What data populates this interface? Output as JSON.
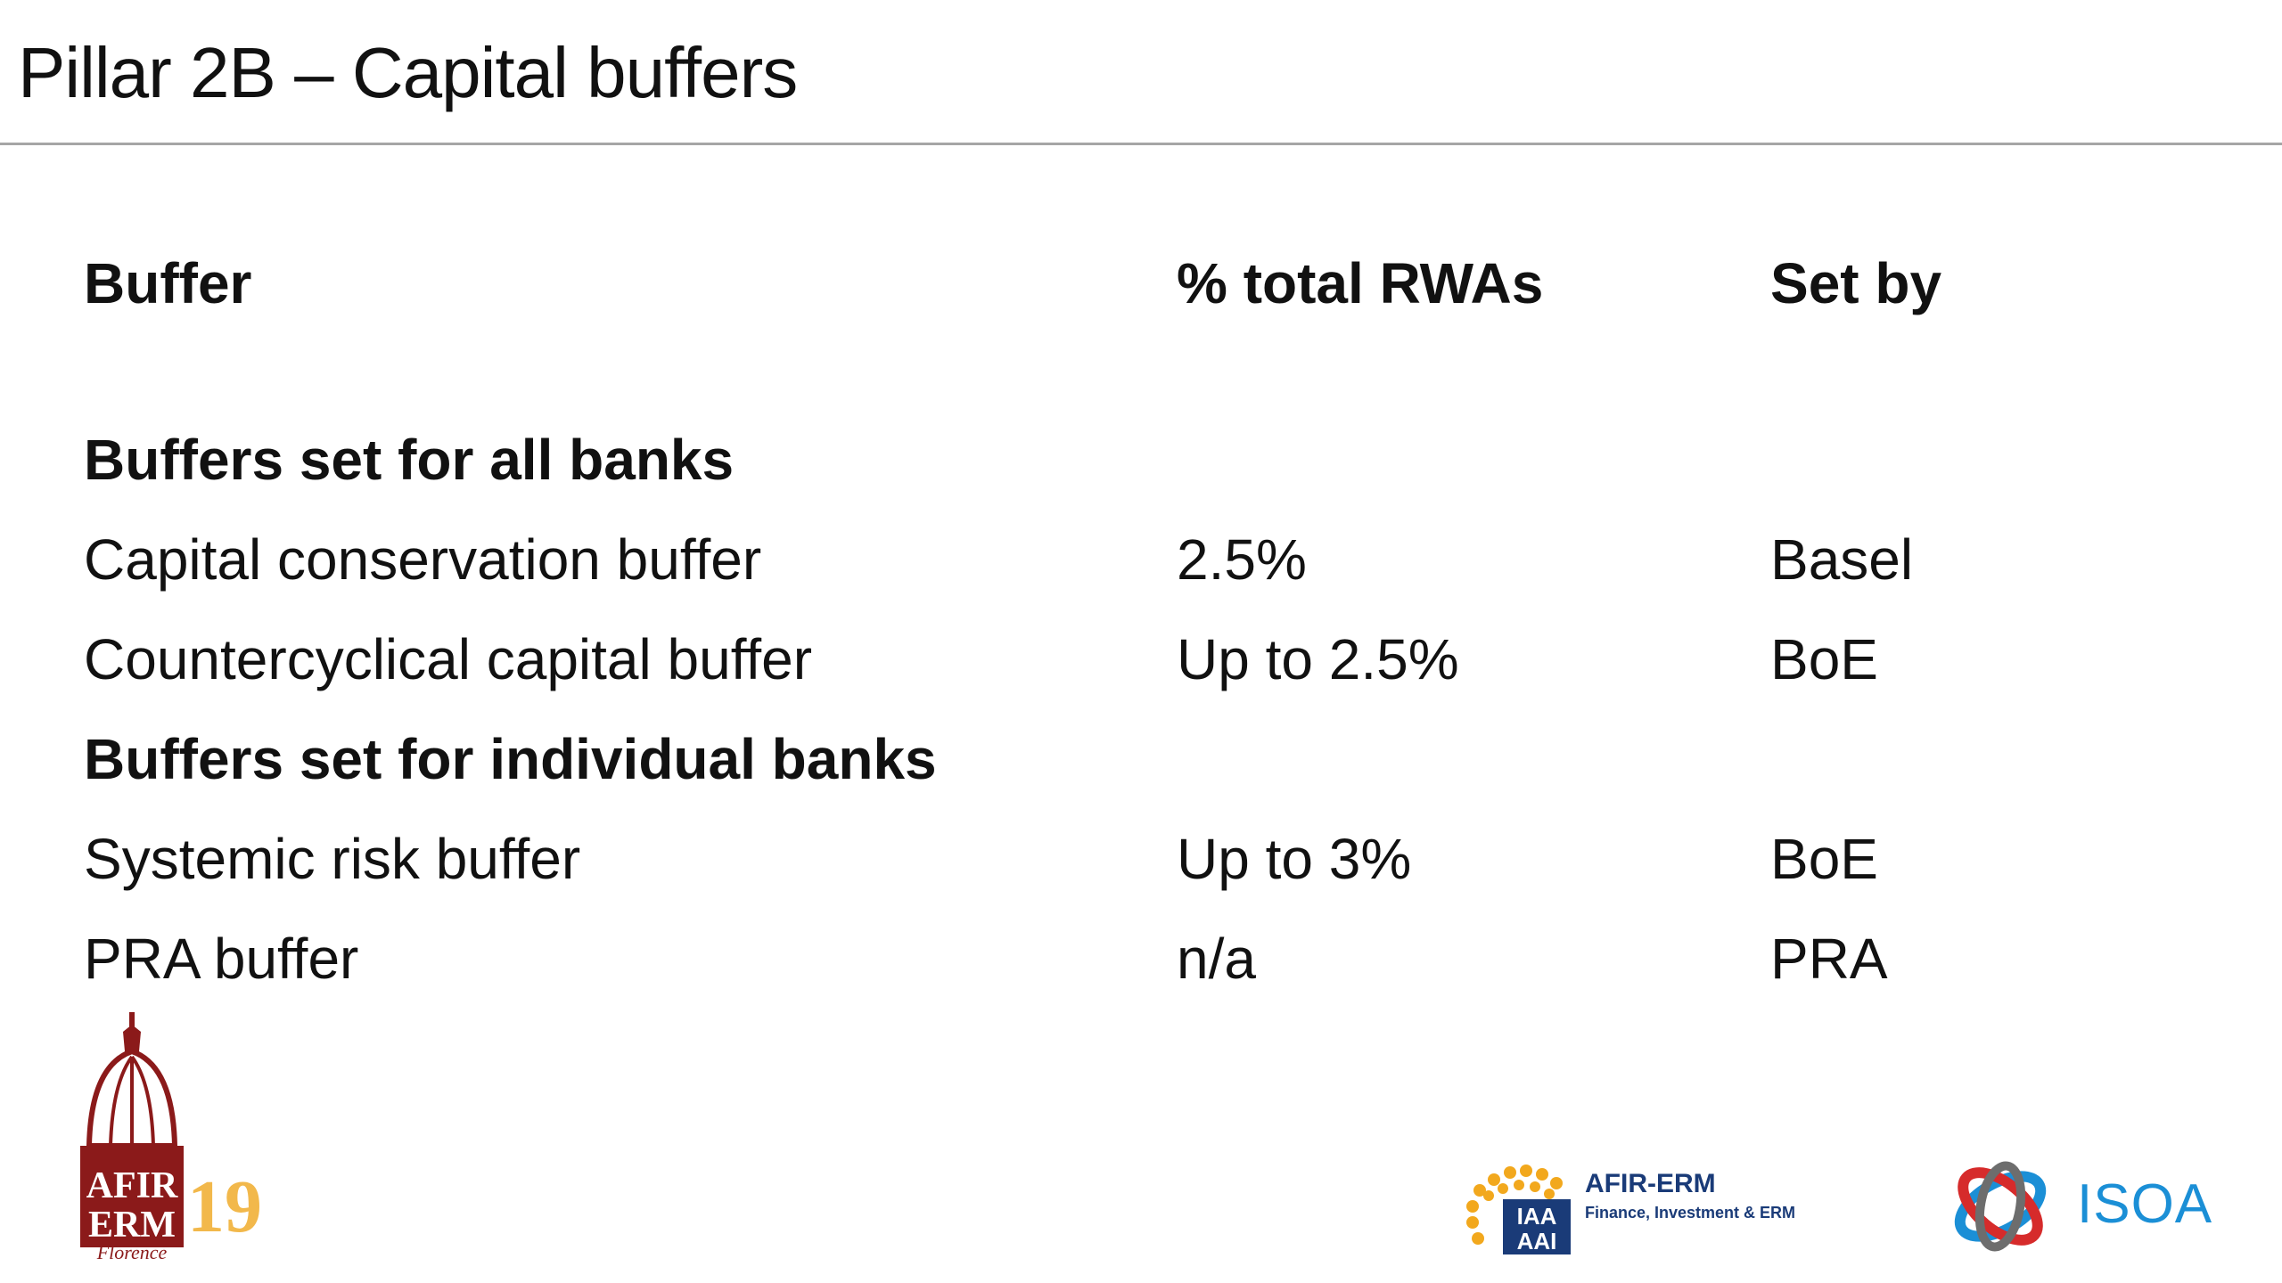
{
  "title": "Pillar 2B – Capital buffers",
  "table": {
    "headers": [
      "Buffer",
      "% total RWAs",
      "Set by"
    ],
    "sections": [
      {
        "heading": "Buffers set for all banks",
        "rows": [
          [
            "Capital conservation buffer",
            "2.5%",
            "Basel"
          ],
          [
            "Countercyclical capital buffer",
            "Up to 2.5%",
            "BoE"
          ]
        ]
      },
      {
        "heading": "Buffers set for individual banks",
        "rows": [
          [
            "Systemic risk buffer",
            "Up to 3%",
            "BoE"
          ],
          [
            "PRA buffer",
            "n/a",
            "PRA"
          ]
        ]
      }
    ]
  },
  "logos": {
    "afir_erm": {
      "line1": "AFIR",
      "line2": "ERM",
      "year": "19",
      "city": "Florence",
      "color": "#8b1a1a",
      "year_color": "#f2b84b"
    },
    "iaa": {
      "mark_line1": "IAA",
      "mark_line2": "AAI",
      "name": "AFIR-ERM",
      "tagline": "Finance, Investment & ERM",
      "color": "#1a3b78"
    },
    "isoa": {
      "name": "ISOA",
      "color": "#1b8fd6"
    }
  }
}
